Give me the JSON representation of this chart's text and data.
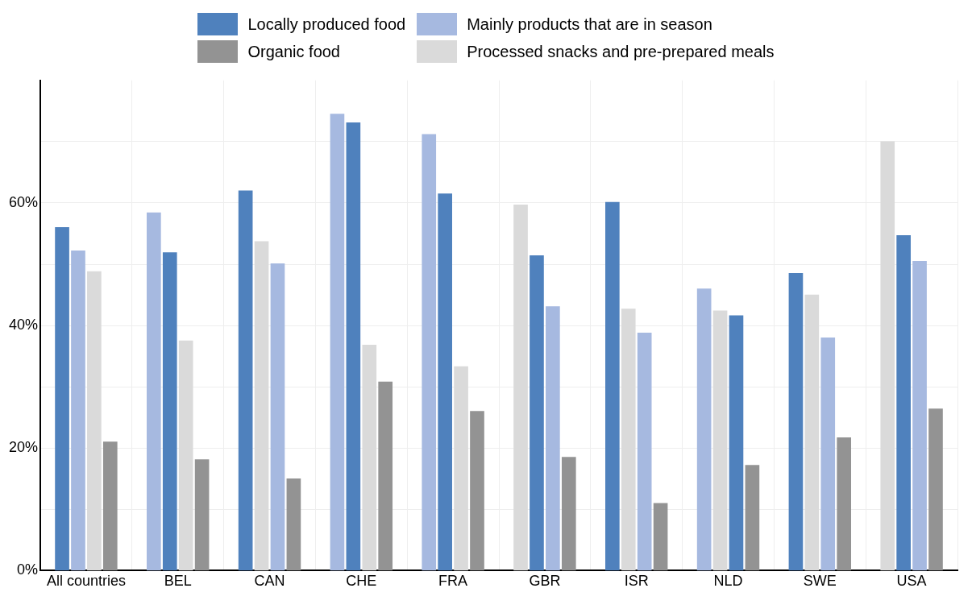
{
  "chart_data": {
    "type": "bar",
    "categories": [
      "All countries",
      "BEL",
      "CAN",
      "CHE",
      "FRA",
      "GBR",
      "ISR",
      "NLD",
      "SWE",
      "USA"
    ],
    "series": [
      {
        "name": "Locally produced food",
        "color": "#4f81bd",
        "values": [
          56,
          51.9,
          62,
          73.1,
          61.5,
          51.4,
          60.1,
          41.6,
          48.5,
          54.7
        ]
      },
      {
        "name": "Mainly products that are in season",
        "color": "#a6b9e0",
        "values": [
          52.2,
          58.4,
          50.1,
          74.5,
          71.2,
          43.1,
          38.8,
          46,
          38,
          50.5
        ]
      },
      {
        "name": "Organic food",
        "color": "#939393",
        "values": [
          21,
          18.1,
          15,
          30.8,
          26,
          18.5,
          11,
          17.2,
          21.7,
          26.4
        ]
      },
      {
        "name": "Processed snacks and pre-prepared meals",
        "color": "#dadada",
        "values": [
          48.8,
          37.5,
          53.7,
          36.8,
          33.3,
          59.7,
          42.7,
          42.4,
          45,
          70
        ]
      }
    ],
    "ylim": [
      0,
      80
    ],
    "yticks": [
      {
        "value": 0,
        "label": "0%"
      },
      {
        "value": 10,
        "label": null
      },
      {
        "value": 20,
        "label": "20%"
      },
      {
        "value": 30,
        "label": null
      },
      {
        "value": 40,
        "label": "40%"
      },
      {
        "value": 50,
        "label": null
      },
      {
        "value": 60,
        "label": "60%"
      },
      {
        "value": 70,
        "label": null
      }
    ],
    "grid": true,
    "legend": "top"
  }
}
